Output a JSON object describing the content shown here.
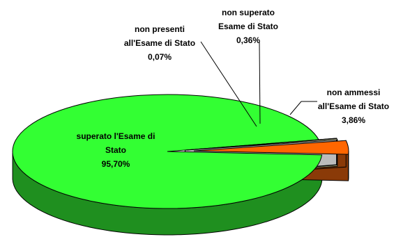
{
  "chart_data": {
    "type": "pie",
    "style": "3d-exploded",
    "categories": [
      "superato l'Esame di Stato",
      "non ammessi all'Esame di Stato",
      "non superato Esame di Stato",
      "non presenti all'Esame di Stato"
    ],
    "values": [
      95.7,
      3.86,
      0.36,
      0.07
    ],
    "value_labels": [
      "95,70%",
      "3,86%",
      "0,36%",
      "0,07%"
    ],
    "label_lines": [
      [
        "superato l'Esame di",
        "Stato",
        "95,70%"
      ],
      [
        "non ammessi",
        "all'Esame di Stato",
        "3,86%"
      ],
      [
        "non superato",
        "Esame di Stato",
        "0,36%"
      ],
      [
        "non presenti",
        "all'Esame di Stato",
        "0,07%"
      ]
    ],
    "colors": [
      "#33ff33",
      "#ff6600",
      "#ffffcc",
      "#ffffff"
    ],
    "legend": "none"
  }
}
